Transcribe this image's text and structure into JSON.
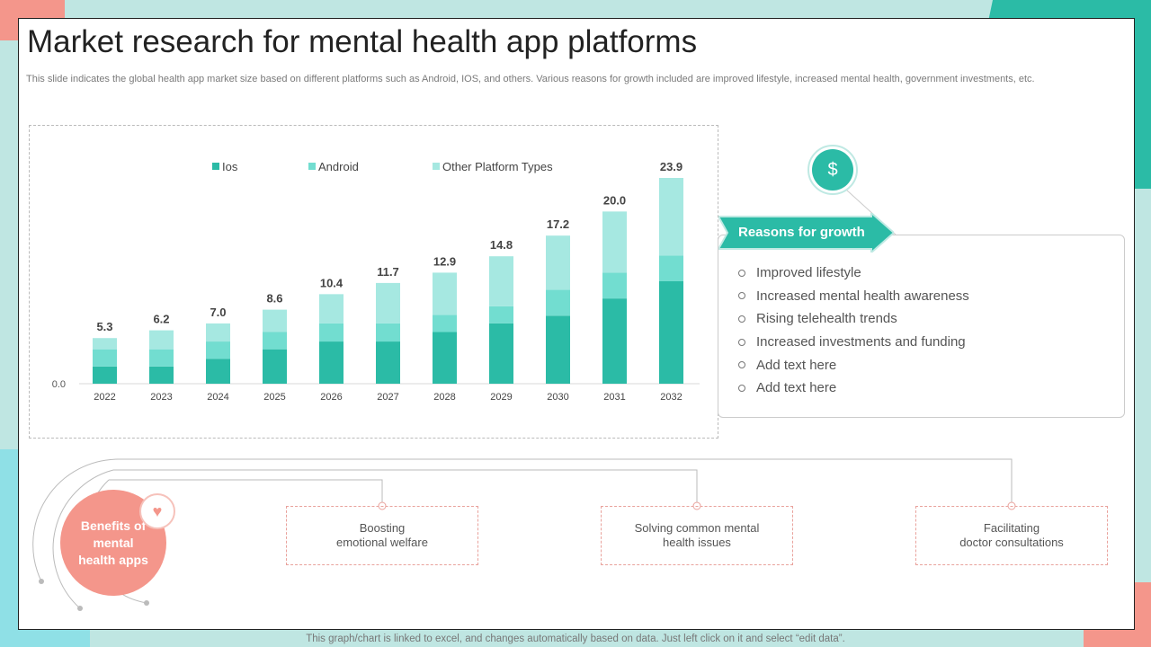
{
  "title": "Market research for mental health app platforms",
  "subtitle": "This slide indicates the global health app market size based on different platforms such as Android, IOS, and others. Various reasons for growth included are improved lifestyle, increased mental health, government investments, etc.",
  "colors": {
    "ios": "#2bbba6",
    "android": "#72ddd0",
    "other": "#a6e8e1",
    "accent": "#2bbba6",
    "coral": "#f4968b"
  },
  "chart_data": {
    "type": "bar",
    "stacked": true,
    "categories": [
      "2022",
      "2023",
      "2024",
      "2025",
      "2026",
      "2027",
      "2028",
      "2029",
      "2030",
      "2031",
      "2032"
    ],
    "series": [
      {
        "name": "Ios",
        "values": [
          2.0,
          2.0,
          2.9,
          4.0,
          4.9,
          4.9,
          6.0,
          7.0,
          7.9,
          9.9,
          11.9
        ]
      },
      {
        "name": "Android",
        "values": [
          2.0,
          2.0,
          2.0,
          2.0,
          2.1,
          2.1,
          2.0,
          2.0,
          3.0,
          3.0,
          3.0
        ]
      },
      {
        "name": "Other Platform Types",
        "values": [
          1.3,
          2.2,
          2.1,
          2.6,
          3.4,
          4.7,
          4.9,
          5.8,
          6.3,
          7.1,
          9.0
        ]
      }
    ],
    "totals": [
      "5.3",
      "6.2",
      "7.0",
      "8.6",
      "10.4",
      "11.7",
      "12.9",
      "14.8",
      "17.2",
      "20.0",
      "23.9"
    ],
    "ytick": "0.0",
    "ylim": [
      0,
      24
    ],
    "legend": "top",
    "grid": false
  },
  "growth": {
    "heading": "Reasons for growth",
    "icon": "money-plant-hand-icon",
    "items": [
      "Improved lifestyle",
      "Increased mental health awareness",
      "Rising telehealth trends",
      "Increased investments and funding",
      "Add text here",
      "Add text here"
    ]
  },
  "benefits": {
    "heading": "Benefits of mental health apps",
    "icon": "heart-hands-icon",
    "items": [
      "Boosting\nemotional welfare",
      "Solving common mental\nhealth issues",
      "Facilitating\ndoctor consultations"
    ]
  },
  "footer": "This graph/chart is linked to excel, and changes automatically based on data. Just left click on it and select “edit data”."
}
